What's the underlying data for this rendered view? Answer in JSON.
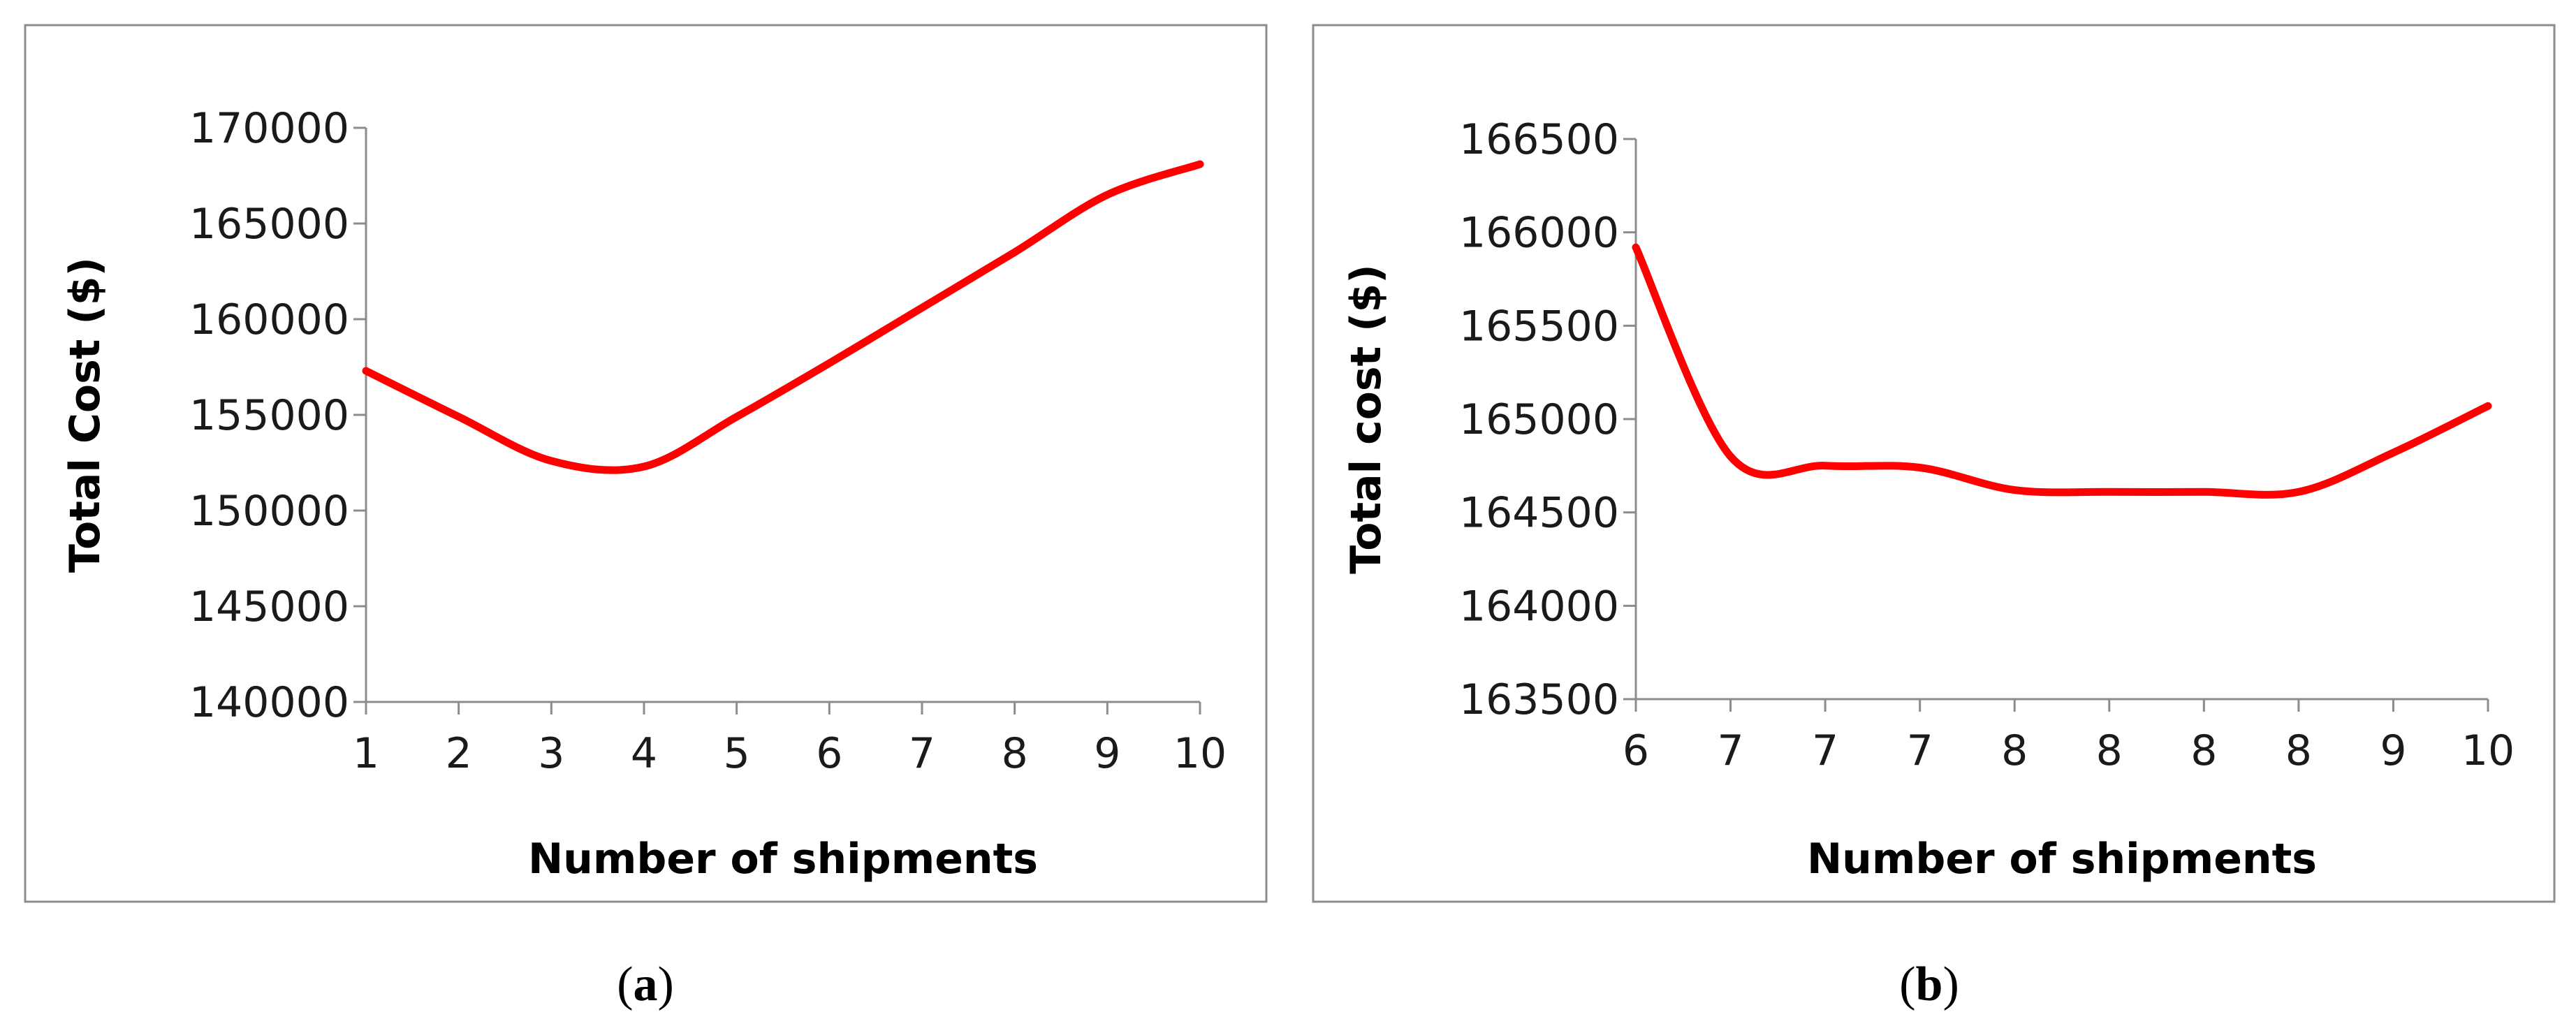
{
  "chart_data": [
    {
      "type": "line",
      "caption_letter": "a",
      "title": "",
      "xlabel": "Number of shipments",
      "ylabel": "Total Cost ($)",
      "x": [
        "1",
        "2",
        "3",
        "4",
        "5",
        "6",
        "7",
        "8",
        "9",
        "10"
      ],
      "series": [
        {
          "values": [
            157300,
            154900,
            152600,
            152300,
            154900,
            157700,
            160600,
            163500,
            166500,
            168100
          ]
        }
      ],
      "ylim": [
        140000,
        170000
      ],
      "yticks": [
        "140000",
        "145000",
        "150000",
        "155000",
        "160000",
        "165000",
        "170000"
      ],
      "grid": false,
      "legend": "none",
      "line_color": "#ff0000"
    },
    {
      "type": "line",
      "caption_letter": "b",
      "title": "",
      "xlabel": "Number of shipments",
      "ylabel": "Total cost ($)",
      "x": [
        "6",
        "7",
        "7",
        "7",
        "8",
        "8",
        "8",
        "8",
        "9",
        "10"
      ],
      "series": [
        {
          "values": [
            165920,
            164800,
            164750,
            164740,
            164620,
            164610,
            164610,
            164610,
            164820,
            165070
          ]
        }
      ],
      "ylim": [
        163500,
        166500
      ],
      "yticks": [
        "163500",
        "164000",
        "164500",
        "165000",
        "165500",
        "166000",
        "166500"
      ],
      "grid": false,
      "legend": "none",
      "line_color": "#ff0000"
    }
  ],
  "caption_open": "(",
  "caption_close": ")"
}
